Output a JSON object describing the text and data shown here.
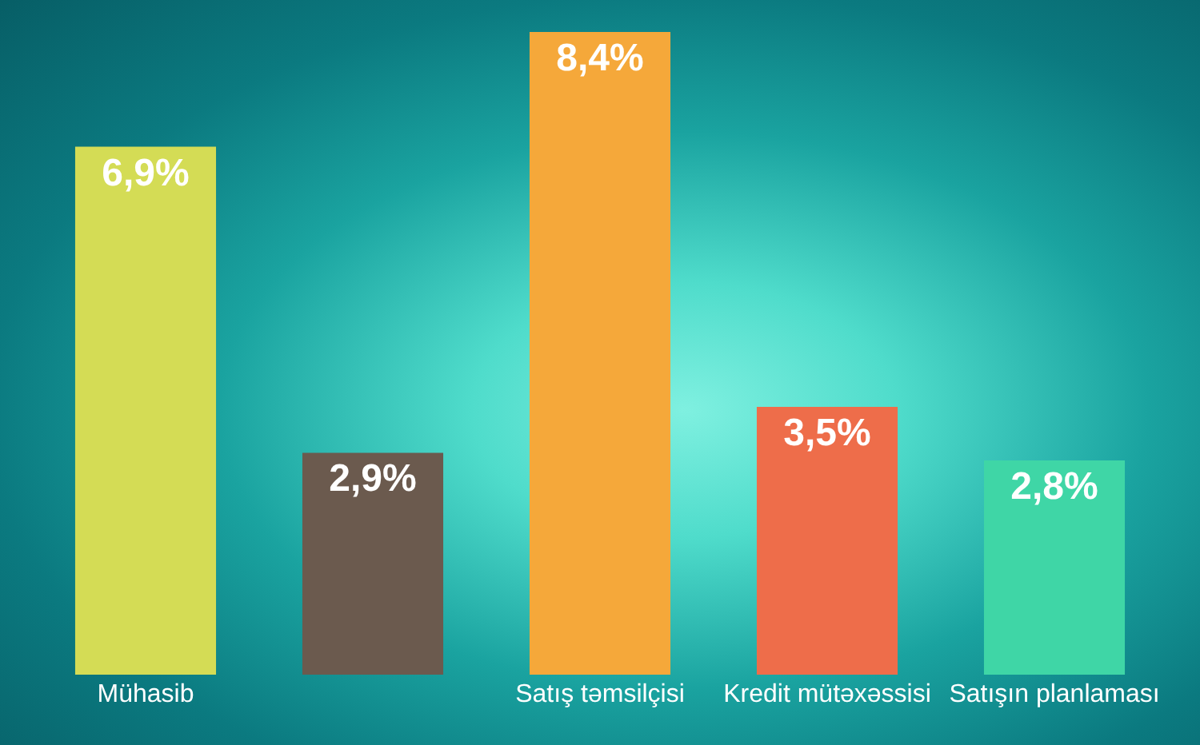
{
  "chart_data": {
    "type": "bar",
    "categories": [
      "Mühasib",
      null,
      "Satış təmsilçisi",
      "Kredit mütəxəssisi",
      "Satışın planlaması"
    ],
    "values": [
      6.9,
      2.9,
      8.4,
      3.5,
      2.8
    ],
    "colors": [
      "#d4dc55",
      "#6b5a4e",
      "#f5a83a",
      "#ee6d4a",
      "#3fd6a6"
    ],
    "value_labels": [
      "6,9%",
      "2,9%",
      "8,4%",
      "3,5%",
      "2,8%"
    ]
  }
}
